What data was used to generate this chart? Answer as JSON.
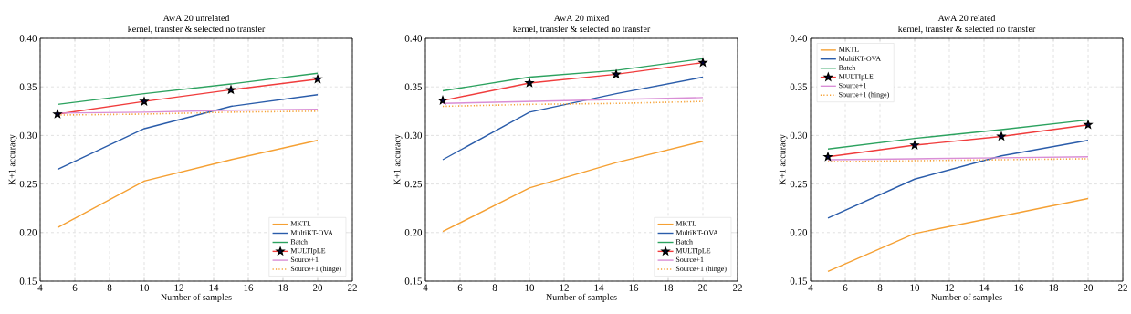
{
  "chart_data": [
    {
      "type": "line",
      "title": "AwA 20 unrelated",
      "subtitle": "kernel, transfer & selected no transfer",
      "xlabel": "Number of samples",
      "ylabel": "K+1 accuracy",
      "x": [
        5,
        10,
        15,
        20
      ],
      "xlim": [
        4,
        22
      ],
      "xticks": [
        4,
        6,
        8,
        10,
        12,
        14,
        16,
        18,
        20,
        22
      ],
      "ylim": [
        0.15,
        0.4
      ],
      "yticks": [
        {
          "value": 0.15,
          "label": "0.15"
        },
        {
          "value": 0.2,
          "label": "0.20"
        },
        {
          "value": 0.25,
          "label": "0.25"
        },
        {
          "value": 0.3,
          "label": "0.30"
        },
        {
          "value": 0.35,
          "label": "0.35"
        },
        {
          "value": 0.4,
          "label": "0.40"
        }
      ],
      "grid": true,
      "legend": "bottom right",
      "series": [
        {
          "name": "MKTL",
          "color": "#f5a033",
          "values": [
            0.205,
            0.253,
            0.275,
            0.295
          ]
        },
        {
          "name": "MultiKT-OVA",
          "color": "#2a5caa",
          "values": [
            0.265,
            0.307,
            0.33,
            0.342
          ]
        },
        {
          "name": "Batch",
          "color": "#2ca25f",
          "values": [
            0.332,
            0.343,
            0.353,
            0.364
          ]
        },
        {
          "name": "MULTIpLE",
          "color": "#f03c3c",
          "marker": "star",
          "values": [
            0.322,
            0.335,
            0.347,
            0.358
          ]
        },
        {
          "name": "Source+1",
          "color": "#d98ed6",
          "values": [
            0.323,
            0.324,
            0.326,
            0.327
          ]
        },
        {
          "name": "Source+1 (hinge)",
          "color": "#f5a033",
          "line_style": "dotted",
          "values": [
            0.321,
            0.322,
            0.324,
            0.325
          ]
        }
      ]
    },
    {
      "type": "line",
      "title": "AwA 20 mixed",
      "subtitle": "kernel, transfer & selected no transfer",
      "xlabel": "Number of samples",
      "ylabel": "K+1 accuracy",
      "x": [
        5,
        10,
        15,
        20
      ],
      "xlim": [
        4,
        22
      ],
      "xticks": [
        4,
        6,
        8,
        10,
        12,
        14,
        16,
        18,
        20,
        22
      ],
      "ylim": [
        0.15,
        0.4
      ],
      "yticks": [
        {
          "value": 0.15,
          "label": "0.15"
        },
        {
          "value": 0.2,
          "label": "0.20"
        },
        {
          "value": 0.25,
          "label": "0.25"
        },
        {
          "value": 0.3,
          "label": "0.30"
        },
        {
          "value": 0.35,
          "label": "0.35"
        },
        {
          "value": 0.4,
          "label": "0.40"
        }
      ],
      "grid": true,
      "legend": "bottom right",
      "series": [
        {
          "name": "MKTL",
          "color": "#f5a033",
          "values": [
            0.201,
            0.246,
            0.272,
            0.294
          ]
        },
        {
          "name": "MultiKT-OVA",
          "color": "#2a5caa",
          "values": [
            0.275,
            0.324,
            0.343,
            0.36
          ]
        },
        {
          "name": "Batch",
          "color": "#2ca25f",
          "values": [
            0.346,
            0.36,
            0.367,
            0.379
          ]
        },
        {
          "name": "MULTIpLE",
          "color": "#f03c3c",
          "marker": "star",
          "values": [
            0.336,
            0.354,
            0.363,
            0.375
          ]
        },
        {
          "name": "Source+1",
          "color": "#d98ed6",
          "values": [
            0.333,
            0.335,
            0.337,
            0.339
          ]
        },
        {
          "name": "Source+1 (hinge)",
          "color": "#f5a033",
          "line_style": "dotted",
          "values": [
            0.33,
            0.332,
            0.333,
            0.335
          ]
        }
      ]
    },
    {
      "type": "line",
      "title": "AwA 20 related",
      "subtitle": "kernel, transfer & selected no transfer",
      "xlabel": "Number of samples",
      "ylabel": "K+1 accuracy",
      "x": [
        5,
        10,
        15,
        20
      ],
      "xlim": [
        4,
        22
      ],
      "xticks": [
        4,
        6,
        8,
        10,
        12,
        14,
        16,
        18,
        20,
        22
      ],
      "ylim": [
        0.15,
        0.4
      ],
      "yticks": [
        {
          "value": 0.15,
          "label": "0.15"
        },
        {
          "value": 0.2,
          "label": "0.20"
        },
        {
          "value": 0.25,
          "label": "0.25"
        },
        {
          "value": 0.3,
          "label": "0.30"
        },
        {
          "value": 0.35,
          "label": "0.35"
        },
        {
          "value": 0.4,
          "label": "0.40"
        }
      ],
      "grid": true,
      "legend": "top left",
      "series": [
        {
          "name": "MKTL",
          "color": "#f5a033",
          "values": [
            0.16,
            0.199,
            0.217,
            0.235
          ]
        },
        {
          "name": "MultiKT-OVA",
          "color": "#2a5caa",
          "values": [
            0.215,
            0.255,
            0.279,
            0.295
          ]
        },
        {
          "name": "Batch",
          "color": "#2ca25f",
          "values": [
            0.286,
            0.297,
            0.306,
            0.316
          ]
        },
        {
          "name": "MULTIpLE",
          "color": "#f03c3c",
          "marker": "star",
          "values": [
            0.278,
            0.29,
            0.299,
            0.311
          ]
        },
        {
          "name": "Source+1",
          "color": "#d98ed6",
          "values": [
            0.275,
            0.276,
            0.277,
            0.278
          ]
        },
        {
          "name": "Source+1 (hinge)",
          "color": "#f5a033",
          "line_style": "dotted",
          "values": [
            0.273,
            0.274,
            0.275,
            0.276
          ]
        }
      ]
    }
  ]
}
